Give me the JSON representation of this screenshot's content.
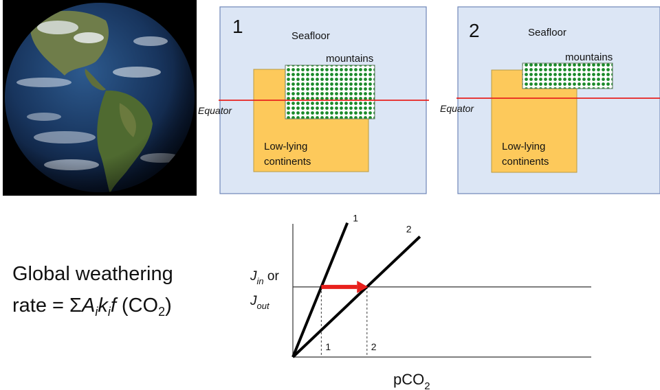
{
  "panels": [
    {
      "number": "1",
      "seafloor": "Seafloor",
      "mountains": "mountains",
      "equator": "Equator",
      "continents_line1": "Low-lying",
      "continents_line2": "continents"
    },
    {
      "number": "2",
      "seafloor": "Seafloor",
      "mountains": "mountains",
      "equator": "Equator",
      "continents_line1": "Low-lying",
      "continents_line2": "continents"
    }
  ],
  "formula": {
    "line1": "Global weathering",
    "rate": "rate = ",
    "sigma": "Σ",
    "A": "A",
    "i1": "i",
    "k": "k",
    "i2": "i",
    "f": "f",
    "paren_open": " (CO",
    "sub2": "2",
    "paren_close": ")"
  },
  "graph": {
    "ylabel_j1": "J",
    "ylabel_in": "in",
    "ylabel_or": " or",
    "ylabel_j2": "J",
    "ylabel_out": "out",
    "xlabel": "pCO",
    "xlabel_sub": "2",
    "line1_label": "1",
    "line2_label": "2",
    "x1_label": "1",
    "x2_label": "2"
  },
  "chart_data": {
    "type": "line",
    "xlabel": "pCO2",
    "ylabel": "Jin or Jout",
    "series": [
      {
        "name": "1",
        "x": [
          0,
          1.8
        ],
        "y": [
          0,
          1.76
        ]
      },
      {
        "name": "2",
        "x": [
          0,
          4.2
        ],
        "y": [
          0,
          1.58
        ]
      }
    ],
    "hline_y": 0.92,
    "intersections_x": [
      0.94,
      2.45
    ],
    "x_tick_labels": [
      "1",
      "2"
    ],
    "arrow": {
      "from_x": 0.94,
      "to_x": 2.12,
      "y": 0.92,
      "color": "#e8201c"
    },
    "colors": {
      "lines": "#000000",
      "arrow": "#e8201c",
      "equator": "#e8201c",
      "continents": "#fdc95b",
      "seafloor": "#dce6f5",
      "mountains": "#1a8a2a"
    }
  }
}
